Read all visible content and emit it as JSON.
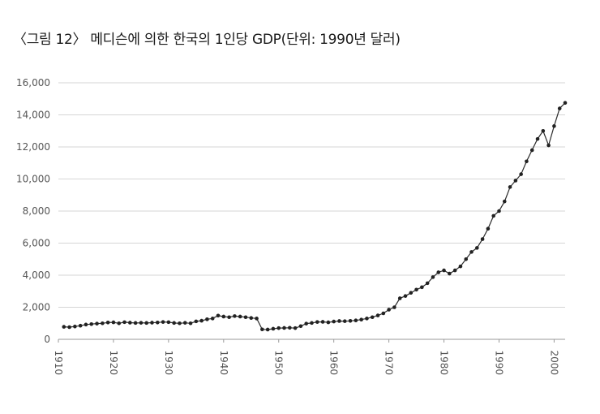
{
  "caption": "〈그림 12〉 메디슨에 의한 한국의 1인당 GDP(단위: 1990년 달러)",
  "chart_data": {
    "type": "line",
    "title": "",
    "xlabel": "",
    "ylabel": "",
    "xlim": [
      1910,
      2002
    ],
    "ylim": [
      0,
      16000
    ],
    "grid": "horizontal",
    "legend": "none",
    "line_color": "#2b2b2b",
    "marker_color": "#222222",
    "y_ticks": [
      {
        "value": 0,
        "label": "0"
      },
      {
        "value": 2000,
        "label": "2,000"
      },
      {
        "value": 4000,
        "label": "4,000"
      },
      {
        "value": 6000,
        "label": "6,000"
      },
      {
        "value": 8000,
        "label": "8,000"
      },
      {
        "value": 10000,
        "label": "10,000"
      },
      {
        "value": 12000,
        "label": "12,000"
      },
      {
        "value": 14000,
        "label": "14,000"
      },
      {
        "value": 16000,
        "label": "16,000"
      }
    ],
    "x_ticks": [
      {
        "value": 1910,
        "label": "1910"
      },
      {
        "value": 1920,
        "label": "1920"
      },
      {
        "value": 1930,
        "label": "1930"
      },
      {
        "value": 1940,
        "label": "1940"
      },
      {
        "value": 1950,
        "label": "1950"
      },
      {
        "value": 1960,
        "label": "1960"
      },
      {
        "value": 1970,
        "label": "1970"
      },
      {
        "value": 1980,
        "label": "1980"
      },
      {
        "value": 1990,
        "label": "1990"
      },
      {
        "value": 2000,
        "label": "2000"
      }
    ],
    "points": [
      [
        1911,
        780
      ],
      [
        1912,
        760
      ],
      [
        1913,
        800
      ],
      [
        1914,
        850
      ],
      [
        1915,
        920
      ],
      [
        1916,
        950
      ],
      [
        1917,
        980
      ],
      [
        1918,
        1000
      ],
      [
        1919,
        1050
      ],
      [
        1920,
        1060
      ],
      [
        1921,
        1000
      ],
      [
        1922,
        1070
      ],
      [
        1923,
        1040
      ],
      [
        1924,
        1020
      ],
      [
        1925,
        1030
      ],
      [
        1926,
        1020
      ],
      [
        1927,
        1040
      ],
      [
        1928,
        1050
      ],
      [
        1929,
        1080
      ],
      [
        1930,
        1070
      ],
      [
        1931,
        1020
      ],
      [
        1932,
        1000
      ],
      [
        1933,
        1030
      ],
      [
        1934,
        1000
      ],
      [
        1935,
        1120
      ],
      [
        1936,
        1160
      ],
      [
        1937,
        1250
      ],
      [
        1938,
        1300
      ],
      [
        1939,
        1480
      ],
      [
        1940,
        1420
      ],
      [
        1941,
        1380
      ],
      [
        1942,
        1450
      ],
      [
        1943,
        1420
      ],
      [
        1944,
        1380
      ],
      [
        1945,
        1330
      ],
      [
        1946,
        1300
      ],
      [
        1947,
        620
      ],
      [
        1948,
        610
      ],
      [
        1949,
        660
      ],
      [
        1950,
        700
      ],
      [
        1951,
        710
      ],
      [
        1952,
        720
      ],
      [
        1953,
        700
      ],
      [
        1954,
        820
      ],
      [
        1955,
        980
      ],
      [
        1956,
        1020
      ],
      [
        1957,
        1080
      ],
      [
        1958,
        1090
      ],
      [
        1959,
        1060
      ],
      [
        1960,
        1110
      ],
      [
        1961,
        1140
      ],
      [
        1962,
        1130
      ],
      [
        1963,
        1150
      ],
      [
        1964,
        1180
      ],
      [
        1965,
        1230
      ],
      [
        1966,
        1300
      ],
      [
        1967,
        1380
      ],
      [
        1968,
        1490
      ],
      [
        1969,
        1620
      ],
      [
        1970,
        1850
      ],
      [
        1971,
        2000
      ],
      [
        1972,
        2560
      ],
      [
        1973,
        2700
      ],
      [
        1974,
        2900
      ],
      [
        1975,
        3100
      ],
      [
        1976,
        3250
      ],
      [
        1977,
        3500
      ],
      [
        1978,
        3880
      ],
      [
        1979,
        4180
      ],
      [
        1980,
        4300
      ],
      [
        1981,
        4100
      ],
      [
        1982,
        4300
      ],
      [
        1983,
        4550
      ],
      [
        1984,
        5000
      ],
      [
        1985,
        5450
      ],
      [
        1986,
        5700
      ],
      [
        1987,
        6250
      ],
      [
        1988,
        6900
      ],
      [
        1989,
        7700
      ],
      [
        1990,
        8000
      ],
      [
        1991,
        8600
      ],
      [
        1992,
        9500
      ],
      [
        1993,
        9900
      ],
      [
        1994,
        10300
      ],
      [
        1995,
        11100
      ],
      [
        1996,
        11800
      ],
      [
        1997,
        12500
      ],
      [
        1998,
        13000
      ],
      [
        1999,
        12100
      ],
      [
        2000,
        13300
      ],
      [
        2001,
        14400
      ],
      [
        2002,
        14750
      ]
    ]
  }
}
